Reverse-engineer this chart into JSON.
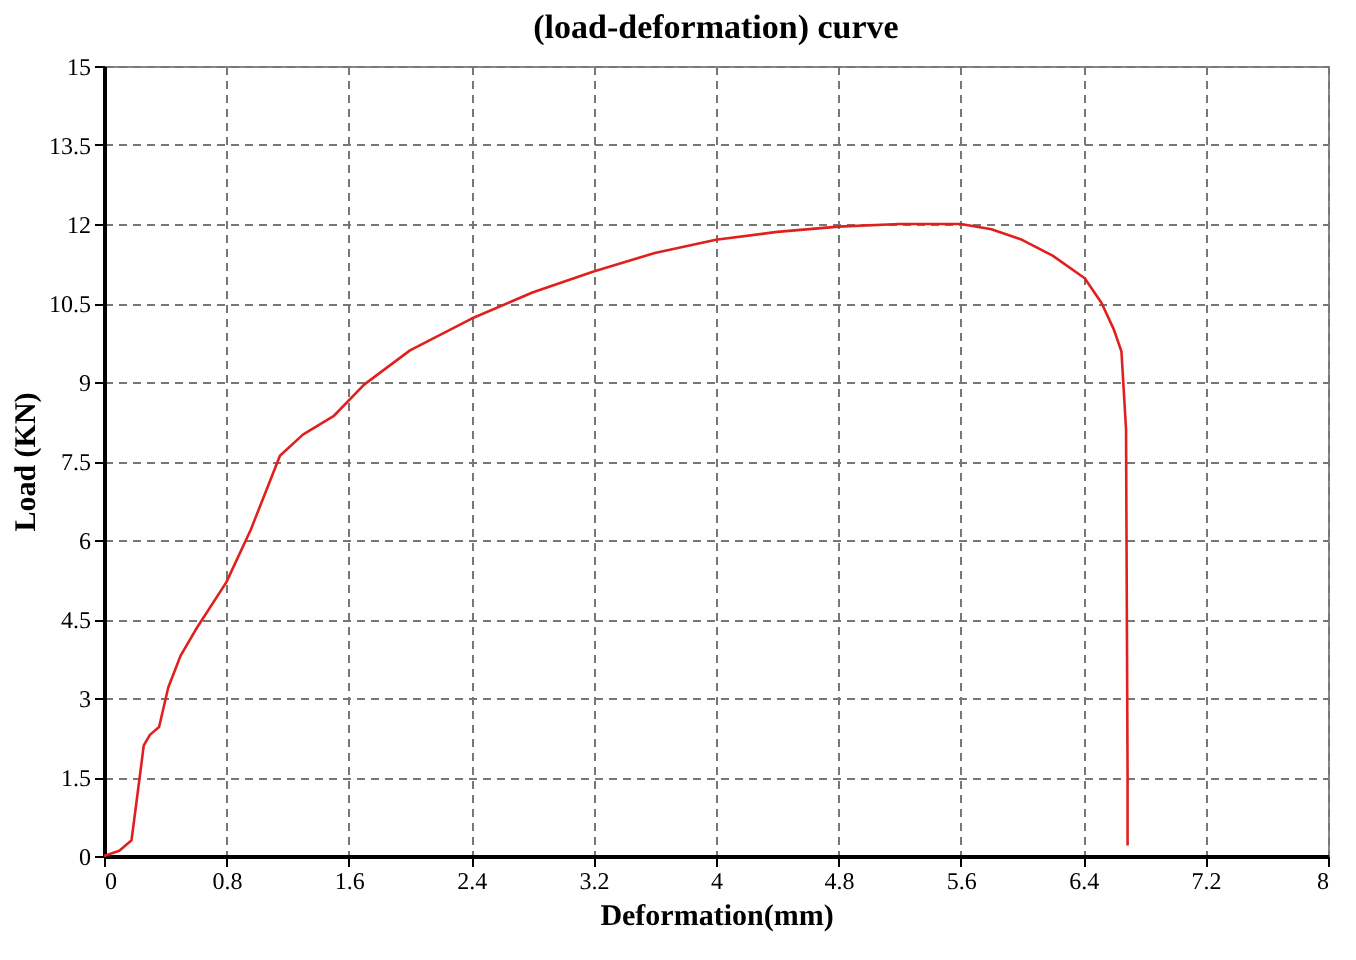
{
  "chart_data": {
    "type": "line",
    "title": "(load-deformation) curve",
    "xlabel": "Deformation(mm)",
    "ylabel": "Load (KN)",
    "xlim": [
      0,
      8
    ],
    "xticks": [
      0,
      0.8,
      1.6,
      2.4,
      3.2,
      4,
      4.8,
      5.6,
      6.4,
      7.2,
      8
    ],
    "ylim": [
      0,
      15
    ],
    "yticks": [
      0,
      1.5,
      3,
      4.5,
      6,
      7.5,
      9,
      10.5,
      12,
      13.5,
      15
    ],
    "grid": true,
    "line_style": "solid",
    "marker": "none",
    "series": [
      {
        "color": "#e0201e",
        "x": [
          0,
          0.1,
          0.18,
          0.22,
          0.26,
          0.3,
          0.36,
          0.42,
          0.5,
          0.6,
          0.8,
          0.96,
          1.15,
          1.3,
          1.5,
          1.7,
          2.0,
          2.4,
          2.8,
          3.2,
          3.6,
          4.0,
          4.4,
          4.8,
          5.2,
          5.6,
          5.8,
          6.0,
          6.2,
          6.41,
          6.52,
          6.6,
          6.65,
          6.68,
          6.69,
          6.69
        ],
        "values": [
          0,
          0.1,
          0.3,
          1.2,
          2.1,
          2.3,
          2.45,
          3.2,
          3.8,
          4.3,
          5.2,
          6.2,
          7.6,
          8.0,
          8.35,
          8.95,
          9.6,
          10.2,
          10.7,
          11.1,
          11.45,
          11.7,
          11.85,
          11.95,
          12.0,
          12.0,
          11.9,
          11.7,
          11.4,
          10.97,
          10.5,
          10.0,
          9.58,
          8.1,
          1.5,
          0.2
        ]
      }
    ]
  }
}
